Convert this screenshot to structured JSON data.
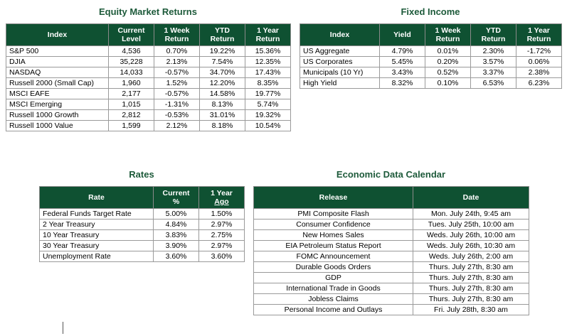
{
  "equity": {
    "title": "Equity Market Returns",
    "headers": {
      "index": "Index",
      "current_1": "Current",
      "current_2": "Level",
      "week_1": "1 Week",
      "week_2": "Return",
      "ytd_1": "YTD",
      "ytd_2": "Return",
      "year_1": "1 Year",
      "year_2": "Return"
    },
    "rows": [
      {
        "name": "S&P 500",
        "level": "4,536",
        "week": "0.70%",
        "ytd": "19.22%",
        "year": "15.36%"
      },
      {
        "name": "DJIA",
        "level": "35,228",
        "week": "2.13%",
        "ytd": "7.54%",
        "year": "12.35%"
      },
      {
        "name": "NASDAQ",
        "level": "14,033",
        "week": "-0.57%",
        "ytd": "34.70%",
        "year": "17.43%"
      },
      {
        "name": "Russell 2000 (Small Cap)",
        "level": "1,960",
        "week": "1.52%",
        "ytd": "12.20%",
        "year": "8.35%"
      },
      {
        "name": "MSCI EAFE",
        "level": "2,177",
        "week": "-0.57%",
        "ytd": "14.58%",
        "year": "19.77%"
      },
      {
        "name": "MSCI Emerging",
        "level": "1,015",
        "week": "-1.31%",
        "ytd": "8.13%",
        "year": "5.74%"
      },
      {
        "name": "Russell 1000 Growth",
        "level": "2,812",
        "week": "-0.53%",
        "ytd": "31.01%",
        "year": "19.32%"
      },
      {
        "name": "Russell 1000 Value",
        "level": "1,599",
        "week": "2.12%",
        "ytd": "8.18%",
        "year": "10.54%"
      }
    ]
  },
  "fixed": {
    "title": "Fixed Income",
    "headers": {
      "index": "Index",
      "yield": "Yield",
      "week_1": "1 Week",
      "week_2": "Return",
      "ytd_1": "YTD",
      "ytd_2": "Return",
      "year_1": "1 Year",
      "year_2": "Return"
    },
    "rows": [
      {
        "name": "US Aggregate",
        "yield": "4.79%",
        "week": "0.01%",
        "ytd": "2.30%",
        "year": "-1.72%"
      },
      {
        "name": "US Corporates",
        "yield": "5.45%",
        "week": "0.20%",
        "ytd": "3.57%",
        "year": "0.06%"
      },
      {
        "name": "Municipals (10 Yr)",
        "yield": "3.43%",
        "week": "0.52%",
        "ytd": "3.37%",
        "year": "2.38%"
      },
      {
        "name": "High Yield",
        "yield": "8.32%",
        "week": "0.10%",
        "ytd": "6.53%",
        "year": "6.23%"
      }
    ]
  },
  "rates": {
    "title": "Rates",
    "headers": {
      "rate": "Rate",
      "current_1": "Current",
      "current_2": "%",
      "year_1": "1 Year",
      "year_2": "Ago"
    },
    "rows": [
      {
        "name": "Federal Funds Target Rate",
        "current": "5.00%",
        "ago": "1.50%"
      },
      {
        "name": "2 Year Treasury",
        "current": "4.84%",
        "ago": "2.97%"
      },
      {
        "name": "10 Year Treasury",
        "current": "3.83%",
        "ago": "2.75%"
      },
      {
        "name": "30 Year Treasury",
        "current": "3.90%",
        "ago": "2.97%"
      },
      {
        "name": "Unemployment Rate",
        "current": "3.60%",
        "ago": "3.60%"
      }
    ]
  },
  "calendar": {
    "title": "Economic Data Calendar",
    "headers": {
      "release": "Release",
      "date": "Date"
    },
    "rows": [
      {
        "release": "PMI Composite Flash",
        "date": "Mon. July 24th, 9:45 am"
      },
      {
        "release": "Consumer Confidence",
        "date": "Tues. July 25th, 10:00 am"
      },
      {
        "release": "New Homes Sales",
        "date": "Weds. July 26th, 10:00 am"
      },
      {
        "release": "EIA Petroleum Status Report",
        "date": "Weds. July 26th, 10:30 am"
      },
      {
        "release": "FOMC Announcement",
        "date": "Weds. July 26th, 2:00 am"
      },
      {
        "release": "Durable Goods Orders",
        "date": "Thurs. July 27th, 8:30 am"
      },
      {
        "release": "GDP",
        "date": "Thurs. July 27th, 8:30 am"
      },
      {
        "release": "International Trade in Goods",
        "date": "Thurs. July 27th, 8:30 am"
      },
      {
        "release": "Jobless Claims",
        "date": "Thurs. July 27th, 8:30 am"
      },
      {
        "release": "Personal Income and Outlays",
        "date": "Fri. July 28th, 8:30 am"
      }
    ]
  }
}
